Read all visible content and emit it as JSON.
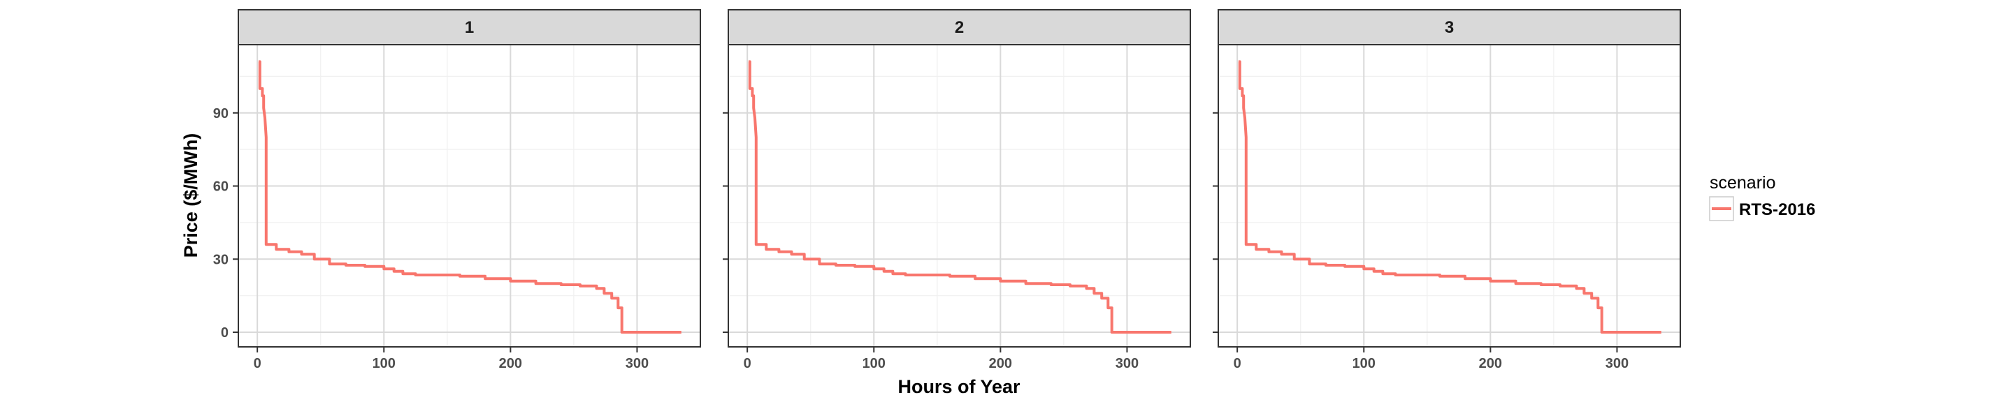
{
  "chart_data": {
    "type": "line",
    "facet_variable": "panel",
    "panels": [
      {
        "label": "1"
      },
      {
        "label": "2"
      },
      {
        "label": "3"
      }
    ],
    "xlabel": "Hours of Year",
    "ylabel": "Price ($/MWh)",
    "xlim": [
      -15,
      350
    ],
    "ylim": [
      -6,
      118
    ],
    "x_ticks": [
      0,
      100,
      200,
      300
    ],
    "y_ticks": [
      0,
      30,
      60,
      90
    ],
    "x_tick_labels": [
      "0",
      "100",
      "200",
      "300"
    ],
    "y_tick_labels": [
      "0",
      "30",
      "60",
      "90"
    ],
    "grid": true,
    "legend": {
      "title": "scenario",
      "position": "right",
      "entries": [
        {
          "label": "RTS-2016",
          "color": "#f8766d"
        }
      ]
    },
    "series": [
      {
        "name": "RTS-2016",
        "color": "#f8766d",
        "points": [
          [
            1,
            111
          ],
          [
            2,
            111
          ],
          [
            2,
            100
          ],
          [
            4,
            100
          ],
          [
            4,
            97
          ],
          [
            5,
            97
          ],
          [
            5,
            92
          ],
          [
            6,
            88
          ],
          [
            7,
            80
          ],
          [
            7,
            36
          ],
          [
            15,
            36
          ],
          [
            15,
            34
          ],
          [
            25,
            34
          ],
          [
            25,
            33
          ],
          [
            35,
            33
          ],
          [
            35,
            32
          ],
          [
            45,
            32
          ],
          [
            45,
            30
          ],
          [
            57,
            30
          ],
          [
            57,
            28
          ],
          [
            70,
            28
          ],
          [
            70,
            27.5
          ],
          [
            85,
            27.5
          ],
          [
            85,
            27
          ],
          [
            100,
            27
          ],
          [
            100,
            26
          ],
          [
            108,
            26
          ],
          [
            108,
            25
          ],
          [
            115,
            25
          ],
          [
            115,
            24
          ],
          [
            125,
            24
          ],
          [
            125,
            23.5
          ],
          [
            160,
            23.5
          ],
          [
            160,
            23
          ],
          [
            180,
            23
          ],
          [
            180,
            22
          ],
          [
            200,
            22
          ],
          [
            200,
            21
          ],
          [
            220,
            21
          ],
          [
            220,
            20
          ],
          [
            240,
            20
          ],
          [
            240,
            19.5
          ],
          [
            255,
            19.5
          ],
          [
            255,
            19
          ],
          [
            268,
            19
          ],
          [
            268,
            18
          ],
          [
            274,
            18
          ],
          [
            274,
            16
          ],
          [
            280,
            16
          ],
          [
            280,
            14
          ],
          [
            285,
            14
          ],
          [
            285,
            10
          ],
          [
            288,
            10
          ],
          [
            288,
            0
          ],
          [
            335,
            0
          ]
        ]
      }
    ]
  }
}
